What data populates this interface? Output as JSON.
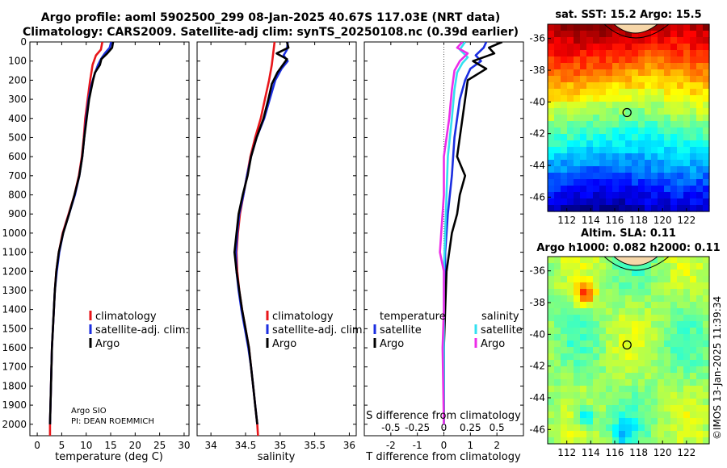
{
  "header": {
    "line1": "Argo profile: aoml 5902500_299 08-Jan-2025 40.67S 117.03E (NRT data)",
    "line2": "Climatology: CARS2009. Satellite-adj clim: synTS_20250108.nc (0.39d earlier)"
  },
  "colors": {
    "clim": "#e8161a",
    "sat": "#1b2ee0",
    "argo": "#000000",
    "cyan": "#33e0f0",
    "magenta": "#ec2ce8"
  },
  "depth_axis": {
    "ticks": [
      "0",
      "100",
      "200",
      "300",
      "400",
      "500",
      "600",
      "700",
      "800",
      "900",
      "1000",
      "1100",
      "1200",
      "1300",
      "1400",
      "1500",
      "1600",
      "1700",
      "1800",
      "1900",
      "2000"
    ],
    "range": [
      0,
      2060
    ]
  },
  "legend1": {
    "clim": "climatology",
    "sat": "satellite-adj. clim.",
    "argo": "Argo"
  },
  "legend2": {
    "clim": "climatology",
    "sat": "satellite-adj. clim.",
    "argo": "Argo"
  },
  "legend3": {
    "temp_head": "temperature",
    "sal_head": "salinity",
    "t_sat": "satellite",
    "t_argo": "Argo",
    "s_sat": "satellite",
    "s_argo": "Argo"
  },
  "credits": {
    "line1": "Argo SIO",
    "line2": "PI: DEAN ROEMMICH"
  },
  "timestamp": "©IMOS 13-Jan-2025 11:39:34",
  "chart_data": [
    {
      "type": "line",
      "xlabel": "temperature (deg C)",
      "ylabel": "depth",
      "xlim": [
        -1.5,
        31
      ],
      "xticks": [
        0,
        5,
        10,
        15,
        20,
        25,
        30
      ],
      "ylim": [
        2060,
        0
      ],
      "series": [
        {
          "name": "climatology",
          "color_key": "clim",
          "points": [
            [
              13.3,
              0
            ],
            [
              13.0,
              40
            ],
            [
              12.0,
              70
            ],
            [
              11.3,
              120
            ],
            [
              10.8,
              200
            ],
            [
              10.3,
              300
            ],
            [
              9.8,
              400
            ],
            [
              9.5,
              500
            ],
            [
              9.1,
              600
            ],
            [
              8.5,
              700
            ],
            [
              7.6,
              800
            ],
            [
              6.4,
              900
            ],
            [
              5.2,
              1000
            ],
            [
              4.4,
              1100
            ],
            [
              3.9,
              1200
            ],
            [
              3.6,
              1300
            ],
            [
              3.4,
              1400
            ],
            [
              3.2,
              1500
            ],
            [
              3.0,
              1600
            ],
            [
              2.9,
              1700
            ],
            [
              2.8,
              1800
            ],
            [
              2.7,
              1900
            ],
            [
              2.6,
              2000
            ],
            [
              2.6,
              2060
            ]
          ]
        },
        {
          "name": "satellite-adj. clim.",
          "color_key": "sat",
          "points": [
            [
              15.1,
              0
            ],
            [
              14.8,
              30
            ],
            [
              13.8,
              60
            ],
            [
              13.0,
              90
            ],
            [
              12.4,
              120
            ],
            [
              11.7,
              170
            ],
            [
              11.0,
              230
            ],
            [
              10.5,
              300
            ],
            [
              10.0,
              400
            ],
            [
              9.6,
              500
            ],
            [
              9.2,
              600
            ],
            [
              8.6,
              700
            ],
            [
              7.7,
              800
            ],
            [
              6.5,
              900
            ],
            [
              5.3,
              1000
            ],
            [
              4.5,
              1100
            ],
            [
              4.0,
              1200
            ],
            [
              3.6,
              1300
            ],
            [
              3.4,
              1400
            ],
            [
              3.2,
              1500
            ],
            [
              3.0,
              1600
            ],
            [
              2.9,
              1700
            ],
            [
              2.8,
              1800
            ],
            [
              2.7,
              1900
            ],
            [
              2.6,
              2000
            ]
          ]
        },
        {
          "name": "Argo",
          "color_key": "argo",
          "points": [
            [
              15.5,
              0
            ],
            [
              15.3,
              30
            ],
            [
              14.3,
              60
            ],
            [
              13.1,
              90
            ],
            [
              12.8,
              120
            ],
            [
              11.8,
              160
            ],
            [
              11.4,
              200
            ],
            [
              10.6,
              300
            ],
            [
              10.1,
              400
            ],
            [
              9.6,
              500
            ],
            [
              9.2,
              600
            ],
            [
              8.6,
              700
            ],
            [
              7.6,
              800
            ],
            [
              6.5,
              900
            ],
            [
              5.3,
              1000
            ],
            [
              4.4,
              1100
            ],
            [
              3.9,
              1200
            ],
            [
              3.6,
              1300
            ],
            [
              3.4,
              1400
            ],
            [
              3.2,
              1500
            ],
            [
              3.0,
              1600
            ],
            [
              2.9,
              1700
            ],
            [
              2.8,
              1800
            ],
            [
              2.7,
              1900
            ],
            [
              2.6,
              2000
            ]
          ]
        }
      ]
    },
    {
      "type": "line",
      "xlabel": "salinity",
      "xlim": [
        33.8,
        36.1
      ],
      "xticks": [
        34,
        34.5,
        35,
        35.5,
        36
      ],
      "ylim": [
        2060,
        0
      ],
      "series": [
        {
          "name": "climatology",
          "color_key": "clim",
          "points": [
            [
              34.92,
              0
            ],
            [
              34.9,
              60
            ],
            [
              34.88,
              120
            ],
            [
              34.84,
              200
            ],
            [
              34.78,
              300
            ],
            [
              34.72,
              400
            ],
            [
              34.64,
              500
            ],
            [
              34.57,
              600
            ],
            [
              34.52,
              700
            ],
            [
              34.47,
              800
            ],
            [
              34.42,
              900
            ],
            [
              34.39,
              1000
            ],
            [
              34.37,
              1100
            ],
            [
              34.38,
              1200
            ],
            [
              34.41,
              1300
            ],
            [
              34.45,
              1400
            ],
            [
              34.5,
              1500
            ],
            [
              34.55,
              1600
            ],
            [
              34.58,
              1700
            ],
            [
              34.61,
              1800
            ],
            [
              34.64,
              1900
            ],
            [
              34.67,
              2000
            ],
            [
              34.68,
              2060
            ]
          ]
        },
        {
          "name": "satellite-adj. clim.",
          "color_key": "sat",
          "points": [
            [
              35.11,
              0
            ],
            [
              35.1,
              40
            ],
            [
              35.05,
              70
            ],
            [
              35.11,
              100
            ],
            [
              35.02,
              140
            ],
            [
              34.93,
              200
            ],
            [
              34.85,
              300
            ],
            [
              34.77,
              400
            ],
            [
              34.66,
              500
            ],
            [
              34.58,
              600
            ],
            [
              34.52,
              700
            ],
            [
              34.47,
              800
            ],
            [
              34.41,
              900
            ],
            [
              34.38,
              1000
            ],
            [
              34.36,
              1100
            ],
            [
              34.37,
              1200
            ],
            [
              34.4,
              1300
            ],
            [
              34.44,
              1400
            ],
            [
              34.49,
              1500
            ],
            [
              34.54,
              1600
            ],
            [
              34.58,
              1700
            ],
            [
              34.61,
              1800
            ],
            [
              34.64,
              1900
            ],
            [
              34.67,
              2000
            ]
          ]
        },
        {
          "name": "Argo",
          "color_key": "argo",
          "points": [
            [
              35.1,
              0
            ],
            [
              35.12,
              30
            ],
            [
              34.95,
              60
            ],
            [
              35.1,
              90
            ],
            [
              35.04,
              120
            ],
            [
              34.96,
              160
            ],
            [
              34.88,
              220
            ],
            [
              34.83,
              300
            ],
            [
              34.76,
              400
            ],
            [
              34.66,
              500
            ],
            [
              34.58,
              600
            ],
            [
              34.53,
              700
            ],
            [
              34.46,
              800
            ],
            [
              34.4,
              900
            ],
            [
              34.37,
              1000
            ],
            [
              34.34,
              1100
            ],
            [
              34.37,
              1200
            ],
            [
              34.41,
              1300
            ],
            [
              34.45,
              1400
            ],
            [
              34.5,
              1500
            ],
            [
              34.55,
              1600
            ],
            [
              34.58,
              1700
            ],
            [
              34.61,
              1800
            ],
            [
              34.64,
              1900
            ],
            [
              34.67,
              2000
            ]
          ]
        }
      ]
    },
    {
      "type": "line",
      "xlabel": "T difference from climatology",
      "top_label": "S difference from climatology",
      "xlim": [
        -3,
        3
      ],
      "xticks": [
        -2,
        -1,
        0,
        1,
        2
      ],
      "top_ticks_labels": [
        "-0.5",
        "-0.25",
        "0",
        "0.25",
        "0.5"
      ],
      "top_ticks_T": [
        -2,
        -1,
        0,
        1,
        2
      ],
      "ylim": [
        2060,
        0
      ],
      "series": [
        {
          "name": "T satellite",
          "color_key": "sat",
          "points": [
            [
              1.6,
              0
            ],
            [
              1.5,
              30
            ],
            [
              1.2,
              70
            ],
            [
              1.4,
              100
            ],
            [
              1.0,
              140
            ],
            [
              0.8,
              200
            ],
            [
              0.6,
              300
            ],
            [
              0.5,
              400
            ],
            [
              0.4,
              500
            ],
            [
              0.3,
              700
            ],
            [
              0.15,
              900
            ],
            [
              0.1,
              1000
            ],
            [
              0.05,
              1100
            ],
            [
              0.05,
              1200
            ],
            [
              0.0,
              1500
            ],
            [
              0.0,
              2000
            ]
          ]
        },
        {
          "name": "T Argo",
          "color_key": "argo",
          "points": [
            [
              2.2,
              0
            ],
            [
              1.7,
              30
            ],
            [
              1.9,
              60
            ],
            [
              1.1,
              100
            ],
            [
              1.6,
              140
            ],
            [
              0.9,
              200
            ],
            [
              0.8,
              300
            ],
            [
              0.7,
              400
            ],
            [
              0.6,
              500
            ],
            [
              0.5,
              600
            ],
            [
              0.8,
              700
            ],
            [
              0.6,
              800
            ],
            [
              0.5,
              900
            ],
            [
              0.3,
              1000
            ],
            [
              0.2,
              1100
            ],
            [
              0.1,
              1200
            ],
            [
              0.05,
              1400
            ],
            [
              0.0,
              1600
            ],
            [
              0.0,
              2000
            ]
          ]
        },
        {
          "name": "S satellite",
          "color_key": "cyan",
          "points": [
            [
              0.8,
              0
            ],
            [
              0.6,
              40
            ],
            [
              0.9,
              80
            ],
            [
              0.7,
              110
            ],
            [
              0.5,
              160
            ],
            [
              0.4,
              250
            ],
            [
              0.3,
              400
            ],
            [
              0.15,
              600
            ],
            [
              0.1,
              800
            ],
            [
              0.05,
              1000
            ],
            [
              0.0,
              1200
            ],
            [
              0.0,
              2000
            ]
          ]
        },
        {
          "name": "S Argo",
          "color_key": "magenta",
          "points": [
            [
              0.7,
              0
            ],
            [
              0.5,
              30
            ],
            [
              0.9,
              60
            ],
            [
              0.6,
              100
            ],
            [
              0.4,
              150
            ],
            [
              0.3,
              250
            ],
            [
              0.2,
              400
            ],
            [
              0.0,
              600
            ],
            [
              0.0,
              800
            ],
            [
              -0.1,
              1000
            ],
            [
              -0.15,
              1100
            ],
            [
              0.0,
              1200
            ],
            [
              0.0,
              1400
            ],
            [
              -0.05,
              1600
            ],
            [
              0.0,
              2000
            ]
          ]
        }
      ]
    },
    {
      "type": "heatmap",
      "title": "sat. SST: 15.2 Argo: 15.5",
      "xticks": [
        112,
        114,
        116,
        118,
        120,
        122
      ],
      "yticks": [
        -36,
        -38,
        -40,
        -42,
        -44,
        -46
      ],
      "xlim": [
        110.4,
        123.9
      ],
      "ylim": [
        -46.9,
        -35.1
      ],
      "marker": {
        "lon": 117.03,
        "lat": -40.67
      }
    },
    {
      "type": "heatmap",
      "title_line1": "Altim. SLA: 0.11",
      "title_line2": "Argo h1000: 0.082 h2000: 0.11",
      "xticks": [
        112,
        114,
        116,
        118,
        120,
        122
      ],
      "yticks": [
        -36,
        -38,
        -40,
        -42,
        -44,
        -46
      ],
      "xlim": [
        110.4,
        123.9
      ],
      "ylim": [
        -46.9,
        -35.1
      ],
      "marker": {
        "lon": 117.03,
        "lat": -40.67
      }
    }
  ]
}
